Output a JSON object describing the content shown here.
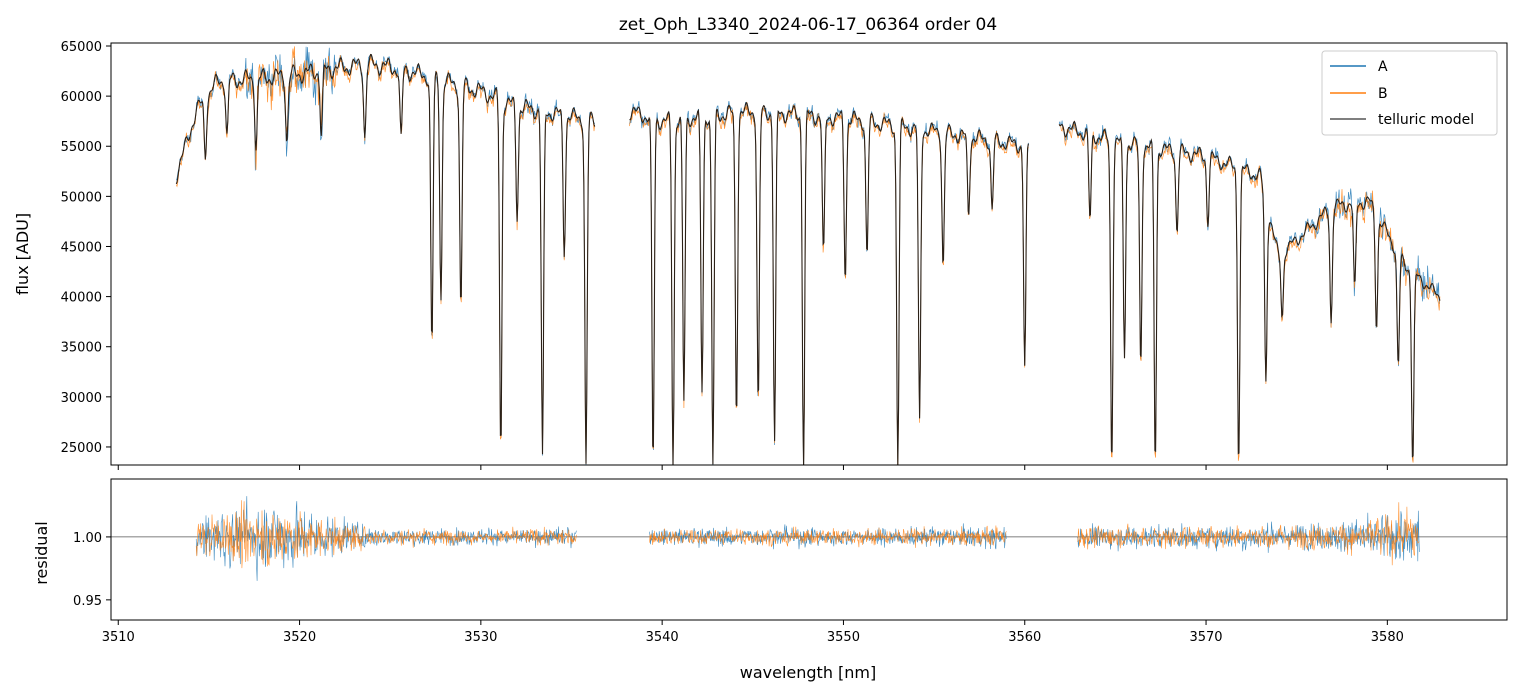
{
  "chart_data": [
    {
      "type": "line",
      "title": "zet_Oph_L3340_2024-06-17_06364  order 04",
      "xlabel": "",
      "ylabel": "flux [ADU]",
      "xlim": [
        3509.6,
        3586.6
      ],
      "ylim": [
        23200,
        65300
      ],
      "yticks": [
        25000,
        30000,
        35000,
        40000,
        45000,
        50000,
        55000,
        60000,
        65000
      ],
      "xticks": [
        3510,
        3520,
        3530,
        3540,
        3550,
        3560,
        3570,
        3580
      ],
      "legend": {
        "position": "top-right",
        "entries": [
          {
            "label": "A",
            "color": "#1f77b4"
          },
          {
            "label": "B",
            "color": "#ff7f0e"
          },
          {
            "label": "telluric model",
            "color": "#555555"
          }
        ]
      },
      "segments": [
        {
          "x0": 3513.2,
          "x1": 3536.3
        },
        {
          "x0": 3538.2,
          "x1": 3560.2
        },
        {
          "x0": 3561.9,
          "x1": 3582.9
        }
      ],
      "continuum": [
        [
          3513.2,
          52000
        ],
        [
          3514.3,
          58500
        ],
        [
          3515.5,
          61500
        ],
        [
          3518.0,
          61800
        ],
        [
          3520.0,
          62200
        ],
        [
          3522.0,
          62800
        ],
        [
          3524.0,
          63200
        ],
        [
          3526.0,
          62500
        ],
        [
          3528.0,
          61500
        ],
        [
          3530.0,
          60500
        ],
        [
          3532.0,
          59000
        ],
        [
          3534.0,
          58300
        ],
        [
          3536.3,
          57500
        ],
        [
          3538.2,
          58500
        ],
        [
          3540.0,
          57500
        ],
        [
          3545.0,
          58500
        ],
        [
          3550.0,
          57800
        ],
        [
          3555.0,
          56500
        ],
        [
          3560.2,
          55000
        ],
        [
          3561.9,
          57000
        ],
        [
          3565.0,
          55500
        ],
        [
          3570.0,
          54000
        ],
        [
          3573.0,
          52000
        ],
        [
          3574.0,
          44000
        ],
        [
          3577.0,
          49000
        ],
        [
          3579.0,
          49500
        ],
        [
          3581.0,
          43000
        ],
        [
          3582.9,
          40000
        ]
      ],
      "absorption_lines": [
        [
          3514.8,
          54000
        ],
        [
          3516.0,
          56000
        ],
        [
          3517.6,
          55000
        ],
        [
          3519.3,
          55500
        ],
        [
          3521.2,
          56000
        ],
        [
          3523.6,
          56000
        ],
        [
          3525.6,
          55500
        ],
        [
          3527.3,
          35000
        ],
        [
          3527.8,
          40000
        ],
        [
          3528.9,
          38800
        ],
        [
          3531.1,
          24500
        ],
        [
          3532.0,
          48000
        ],
        [
          3533.4,
          24000
        ],
        [
          3534.6,
          44500
        ],
        [
          3535.8,
          23200
        ],
        [
          3539.5,
          23200
        ],
        [
          3540.6,
          23200
        ],
        [
          3541.2,
          29500
        ],
        [
          3542.2,
          30500
        ],
        [
          3542.8,
          23200
        ],
        [
          3544.1,
          28000
        ],
        [
          3545.3,
          29000
        ],
        [
          3546.2,
          25500
        ],
        [
          3547.8,
          23200
        ],
        [
          3548.9,
          44000
        ],
        [
          3550.1,
          42000
        ],
        [
          3551.3,
          44000
        ],
        [
          3553.0,
          23200
        ],
        [
          3554.2,
          27500
        ],
        [
          3555.5,
          43000
        ],
        [
          3556.9,
          48000
        ],
        [
          3558.2,
          48500
        ],
        [
          3560.0,
          33000
        ],
        [
          3563.6,
          47500
        ],
        [
          3564.8,
          23200
        ],
        [
          3565.5,
          34000
        ],
        [
          3566.4,
          33000
        ],
        [
          3567.2,
          23200
        ],
        [
          3568.4,
          46500
        ],
        [
          3570.1,
          47500
        ],
        [
          3571.8,
          23300
        ],
        [
          3573.3,
          31500
        ],
        [
          3574.2,
          38000
        ],
        [
          3576.9,
          37500
        ],
        [
          3578.2,
          40500
        ],
        [
          3579.4,
          37000
        ],
        [
          3580.6,
          33000
        ],
        [
          3581.4,
          23200
        ]
      ]
    },
    {
      "type": "line",
      "title": "",
      "xlabel": "wavelength [nm]",
      "ylabel": "residual",
      "xlim": [
        3509.6,
        3586.6
      ],
      "ylim": [
        0.934,
        1.046
      ],
      "yticks": [
        0.95,
        1.0
      ],
      "xticks": [
        3510,
        3520,
        3530,
        3540,
        3550,
        3560,
        3570,
        3580
      ],
      "reference_line": 1.0,
      "segments": [
        {
          "x0": 3514.3,
          "x1": 3535.3
        },
        {
          "x0": 3539.3,
          "x1": 3559.0
        },
        {
          "x0": 3562.9,
          "x1": 3581.8
        }
      ],
      "noise_profile": [
        [
          3514.3,
          0.025
        ],
        [
          3516.0,
          0.035
        ],
        [
          3518.0,
          0.045
        ],
        [
          3520.0,
          0.04
        ],
        [
          3522.0,
          0.025
        ],
        [
          3524.0,
          0.012
        ],
        [
          3530.0,
          0.01
        ],
        [
          3535.3,
          0.012
        ],
        [
          3539.3,
          0.01
        ],
        [
          3545.0,
          0.012
        ],
        [
          3550.0,
          0.012
        ],
        [
          3555.0,
          0.012
        ],
        [
          3559.0,
          0.015
        ],
        [
          3562.9,
          0.015
        ],
        [
          3570.0,
          0.015
        ],
        [
          3577.0,
          0.018
        ],
        [
          3580.0,
          0.03
        ],
        [
          3581.8,
          0.045
        ]
      ]
    }
  ],
  "labels": {
    "title": "zet_Oph_L3340_2024-06-17_06364  order 04",
    "top_ylabel": "flux [ADU]",
    "bottom_ylabel": "residual",
    "bottom_xlabel": "wavelength [nm]",
    "legend": [
      "A",
      "B",
      "telluric model"
    ],
    "top_yticks": [
      "65000",
      "60000",
      "55000",
      "50000",
      "45000",
      "40000",
      "35000",
      "30000",
      "25000"
    ],
    "bottom_yticks": [
      "1.00",
      "0.95"
    ],
    "xticks": [
      "3510",
      "3520",
      "3530",
      "3540",
      "3550",
      "3560",
      "3570",
      "3580"
    ]
  },
  "colors": {
    "A": "#1f77b4",
    "B": "#ff7f0e",
    "model": "#2b2118",
    "legend_model": "#555555"
  }
}
